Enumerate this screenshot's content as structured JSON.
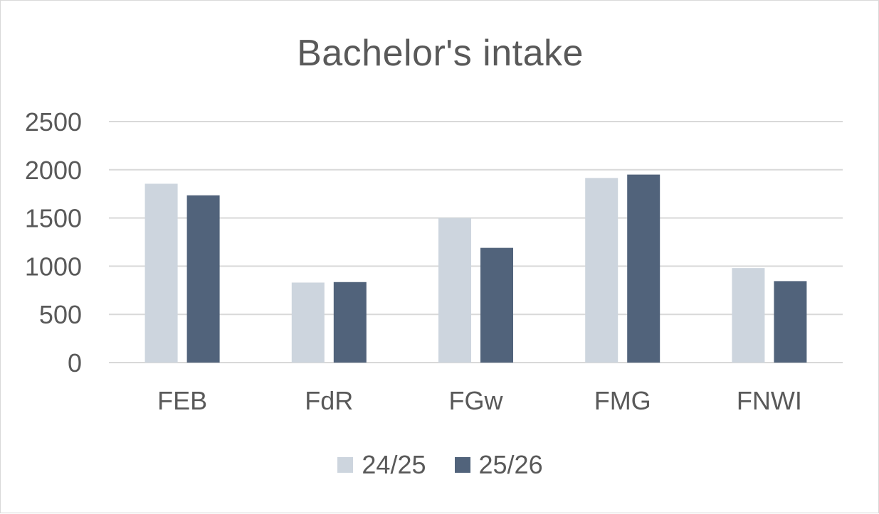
{
  "chart_data": {
    "type": "bar",
    "title": "Bachelor's intake",
    "categories": [
      "FEB",
      "FdR",
      "FGw",
      "FMG",
      "FNWI"
    ],
    "series": [
      {
        "name": "24/25",
        "color": "#cdd5de",
        "values": [
          1855,
          830,
          1500,
          1915,
          980
        ]
      },
      {
        "name": "25/26",
        "color": "#51637b",
        "values": [
          1735,
          835,
          1190,
          1950,
          845
        ]
      }
    ],
    "ylim": [
      0,
      2500
    ],
    "yticks": [
      "0",
      "500",
      "1000",
      "1500",
      "2000",
      "2500"
    ],
    "grid": true,
    "legend_position": "bottom",
    "gridline_color": "#d9d9d9",
    "text_color": "#595959"
  }
}
